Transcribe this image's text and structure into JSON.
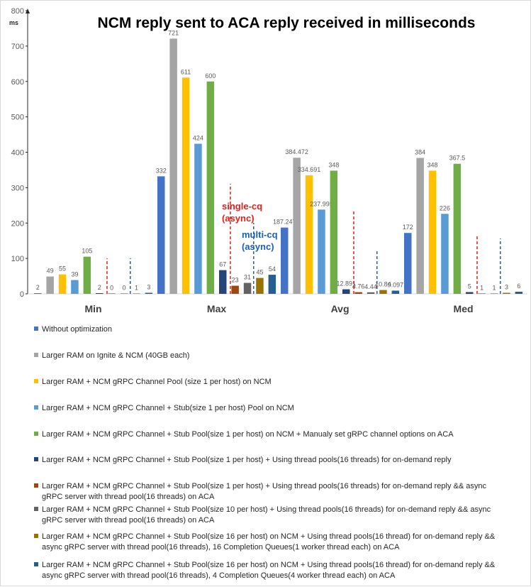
{
  "chart_data": {
    "type": "bar",
    "title": "NCM reply sent to ACA reply received in milliseconds",
    "ylabel": "ms",
    "xlabel": "",
    "ylim": [
      0,
      800
    ],
    "yticks": [
      0,
      100,
      200,
      300,
      400,
      500,
      600,
      700,
      800
    ],
    "grid": false,
    "legend_position": "bottom",
    "categories": [
      "Min",
      "Max",
      "Avg",
      "Med"
    ],
    "series": [
      {
        "name": "Without optimization",
        "color": "#4472c4",
        "values": [
          2,
          332,
          187.247,
          172
        ],
        "labels": [
          "2",
          "332",
          "187.247",
          "172"
        ]
      },
      {
        "name": "Larger RAM on Ignite & NCM (40GB each)",
        "color": "#a5a5a5",
        "values": [
          49,
          721,
          384.472,
          384
        ],
        "labels": [
          "49",
          "721",
          "384.472",
          "384"
        ]
      },
      {
        "name": "Larger RAM + NCM gRPC Channel Pool (size 1 per host) on NCM",
        "color": "#ffc000",
        "values": [
          55,
          611,
          334.691,
          348
        ],
        "labels": [
          "55",
          "611",
          "334.691",
          "348"
        ]
      },
      {
        "name": "Larger RAM + NCM gRPC Channel + Stub(size 1 per host) Pool on NCM",
        "color": "#5b9bd5",
        "values": [
          39,
          424,
          237.995,
          226
        ],
        "labels": [
          "39",
          "424",
          "237.995",
          "226"
        ]
      },
      {
        "name": "Larger RAM + NCM gRPC Channel + Stub Pool(size 1 per host) on NCM + Manualy set gRPC channel options on ACA",
        "color": "#70ad47",
        "values": [
          105,
          600,
          348,
          367.5
        ],
        "labels": [
          "105",
          "600",
          "348",
          "367.5"
        ]
      },
      {
        "name": "Larger RAM + NCM gRPC Channel + Stub Pool(size 1 per host) + Using thread pools(16 threads) for on-demand reply",
        "color": "#264478",
        "values": [
          2,
          67,
          12.891,
          5
        ],
        "labels": [
          "2",
          "67",
          "12.891",
          "5"
        ]
      },
      {
        "name": "Larger RAM + NCM gRPC Channel + Stub Pool(size 1 per host) + Using thread pools(16 threads) for on-demand reply && async gRPC server with thread pool(16 threads) on ACA",
        "color": "#9e480e",
        "values": [
          0,
          23,
          4.76,
          1
        ],
        "labels": [
          "0",
          "23",
          "4.76",
          "1"
        ]
      },
      {
        "name": "Larger RAM + NCM gRPC Channel + Stub Pool(size 10 per host) + Using thread pools(16 threads) for on-demand reply && async gRPC server with thread pool(16 threads) on ACA",
        "color": "#636363",
        "values": [
          0,
          31,
          4.44,
          1
        ],
        "labels": [
          "0",
          "31",
          "4.44",
          "1"
        ]
      },
      {
        "name": "Larger RAM + NCM gRPC Channel + Stub Pool(size 16 per host) on NCM + Using thread pools(16 thread) for on-demand reply && async gRPC server with thread pool(16 threads), 16 Completion Queues(1 worker thread each) on ACA",
        "color": "#997300",
        "values": [
          1,
          45,
          10.84,
          3
        ],
        "labels": [
          "1",
          "45",
          "10.84",
          "3"
        ]
      },
      {
        "name": "Larger RAM + NCM gRPC Channel + Stub Pool(size 16 per host) on NCM + Using thread pools(16 thread) for on-demand reply && async gRPC server with thread pool(16 threads), 4 Completion Queues(4 worker thread each) on ACA",
        "color": "#255e91",
        "values": [
          3,
          54,
          9.097,
          6
        ],
        "labels": [
          "3",
          "54",
          "9.097",
          "6"
        ]
      }
    ],
    "annotations": [
      {
        "text_lines": [
          "single-cq",
          "(async)"
        ],
        "color": "#e0201c"
      },
      {
        "text_lines": [
          "multi-cq",
          "(async)"
        ],
        "color": "#1a5fb4"
      }
    ]
  }
}
